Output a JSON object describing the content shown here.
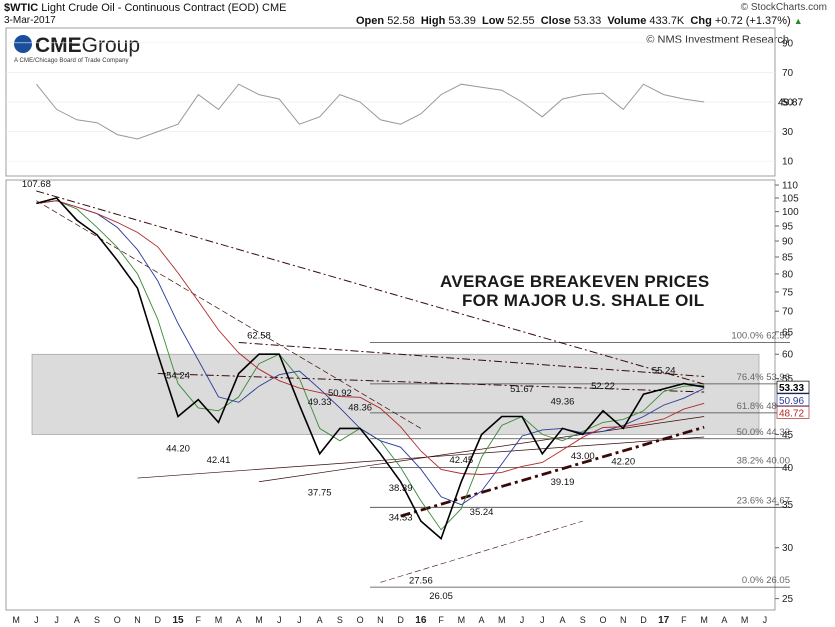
{
  "header": {
    "symbol": "$WTIC",
    "name": "Light Crude Oil - Continuous Contract (EOD)",
    "exchange": "CME",
    "date": "3-Mar-2017",
    "credit": "© StockCharts.com",
    "open_label": "Open",
    "open": "52.58",
    "high_label": "High",
    "high": "53.39",
    "low_label": "Low",
    "low": "52.55",
    "close_label": "Close",
    "close": "53.33",
    "volume_label": "Volume",
    "volume": "433.7K",
    "chg_label": "Chg",
    "chg": "+0.72 (+1.37%)",
    "chg_arrow": "▲"
  },
  "logo": {
    "main": "CME",
    "group": "Group",
    "sub": "A CME/Chicago Board of Trade Company"
  },
  "source_note": "© NMS Investment Research",
  "annotation": {
    "line1": "AVERAGE BREAKEVEN PRICES",
    "line2": "FOR MAJOR U.S. SHALE OIL"
  },
  "colors": {
    "price": "#000000",
    "ma_green": "#3a8a3a",
    "ma_blue": "#2a3a9a",
    "ma_red": "#b02a2a",
    "trendline": "#3a0a0a",
    "band_fill": "#d8d8d8",
    "rsi": "#999999",
    "rsi_fill": "#cdb8b8"
  },
  "chart_data": [
    {
      "type": "line",
      "panel": "rsi",
      "y_ticks": [
        10,
        30,
        50,
        70,
        90
      ],
      "ylim": [
        0,
        100
      ],
      "last_value_label": "49.87",
      "x": [
        "2014-06",
        "2014-07",
        "2014-08",
        "2014-09",
        "2014-10",
        "2014-11",
        "2014-12",
        "2015-01",
        "2015-02",
        "2015-03",
        "2015-04",
        "2015-05",
        "2015-06",
        "2015-07",
        "2015-08",
        "2015-09",
        "2015-10",
        "2015-11",
        "2015-12",
        "2016-01",
        "2016-02",
        "2016-03",
        "2016-04",
        "2016-05",
        "2016-06",
        "2016-07",
        "2016-08",
        "2016-09",
        "2016-10",
        "2016-11",
        "2016-12",
        "2017-01",
        "2017-02",
        "2017-03"
      ],
      "values": [
        62,
        45,
        38,
        36,
        28,
        25,
        30,
        35,
        55,
        45,
        62,
        55,
        52,
        35,
        40,
        55,
        50,
        38,
        35,
        42,
        55,
        62,
        60,
        58,
        50,
        40,
        52,
        55,
        56,
        45,
        62,
        55,
        52,
        50
      ]
    },
    {
      "type": "line",
      "panel": "price",
      "series": [
        {
          "values": [
            103,
            105,
            97,
            92,
            84,
            76,
            60,
            48,
            51,
            47,
            56,
            60,
            60,
            50,
            42,
            46,
            46,
            42,
            38,
            33,
            31,
            38,
            45,
            48,
            48,
            42,
            46,
            45,
            49,
            46,
            52,
            53,
            54,
            53.33
          ]
        }
      ],
      "x": [
        "2014-06",
        "2014-07",
        "2014-08",
        "2014-09",
        "2014-10",
        "2014-11",
        "2014-12",
        "2015-01",
        "2015-02",
        "2015-03",
        "2015-04",
        "2015-05",
        "2015-06",
        "2015-07",
        "2015-08",
        "2015-09",
        "2015-10",
        "2015-11",
        "2015-12",
        "2016-01",
        "2016-02",
        "2016-03",
        "2016-04",
        "2016-05",
        "2016-06",
        "2016-07",
        "2016-08",
        "2016-09",
        "2016-10",
        "2016-11",
        "2016-12",
        "2017-01",
        "2017-02",
        "2017-03"
      ],
      "x_tick_labels": [
        "M",
        "J",
        "J",
        "A",
        "S",
        "O",
        "N",
        "D",
        "15",
        "F",
        "M",
        "A",
        "M",
        "J",
        "J",
        "A",
        "S",
        "O",
        "N",
        "D",
        "16",
        "F",
        "M",
        "A",
        "M",
        "J",
        "J",
        "A",
        "S",
        "O",
        "N",
        "D",
        "17",
        "F",
        "M",
        "A",
        "M",
        "J"
      ],
      "y_ticks": [
        25,
        30,
        35,
        40,
        45,
        50,
        55,
        60,
        65,
        70,
        75,
        80,
        85,
        90,
        95,
        100,
        105,
        110
      ],
      "y_scale": "log",
      "ylim": [
        24,
        112
      ],
      "band": [
        45,
        60
      ],
      "last_value_labels": [
        "53.33",
        "50.96",
        "48.72"
      ],
      "fibonacci": [
        {
          "label": "100.0%",
          "value": "62.58"
        },
        {
          "label": "76.4%",
          "value": "53.96"
        },
        {
          "label": "61.8%",
          "value": "48.63"
        },
        {
          "label": "50.0%",
          "value": "44.32"
        },
        {
          "label": "38.2%",
          "value": "40.00"
        },
        {
          "label": "23.6%",
          "value": "34.67"
        },
        {
          "label": "0.0%",
          "value": "26.05"
        }
      ],
      "annotations": [
        {
          "text": "107.68",
          "x": "2014-06",
          "y": 107.68
        },
        {
          "text": "54.24",
          "x": "2015-01",
          "y": 54.24
        },
        {
          "text": "44.20",
          "x": "2015-01",
          "y": 44.2
        },
        {
          "text": "42.41",
          "x": "2015-03",
          "y": 42.41
        },
        {
          "text": "62.58",
          "x": "2015-05",
          "y": 62.58
        },
        {
          "text": "49.33",
          "x": "2015-08",
          "y": 49.33
        },
        {
          "text": "50.92",
          "x": "2015-09",
          "y": 50.92
        },
        {
          "text": "48.36",
          "x": "2015-10",
          "y": 48.36
        },
        {
          "text": "37.75",
          "x": "2015-08",
          "y": 37.75
        },
        {
          "text": "38.39",
          "x": "2015-12",
          "y": 38.39
        },
        {
          "text": "34.53",
          "x": "2015-12",
          "y": 34.53
        },
        {
          "text": "27.56",
          "x": "2016-01",
          "y": 27.56
        },
        {
          "text": "26.05",
          "x": "2016-02",
          "y": 26.05
        },
        {
          "text": "42.45",
          "x": "2016-03",
          "y": 42.45
        },
        {
          "text": "35.24",
          "x": "2016-04",
          "y": 35.24
        },
        {
          "text": "51.67",
          "x": "2016-06",
          "y": 51.67
        },
        {
          "text": "49.36",
          "x": "2016-08",
          "y": 49.36
        },
        {
          "text": "43.00",
          "x": "2016-09",
          "y": 43
        },
        {
          "text": "39.19",
          "x": "2016-08",
          "y": 39.19
        },
        {
          "text": "52.22",
          "x": "2016-10",
          "y": 52.22
        },
        {
          "text": "42.20",
          "x": "2016-11",
          "y": 42.2
        },
        {
          "text": "55.24",
          "x": "2017-01",
          "y": 55.24
        }
      ]
    }
  ]
}
